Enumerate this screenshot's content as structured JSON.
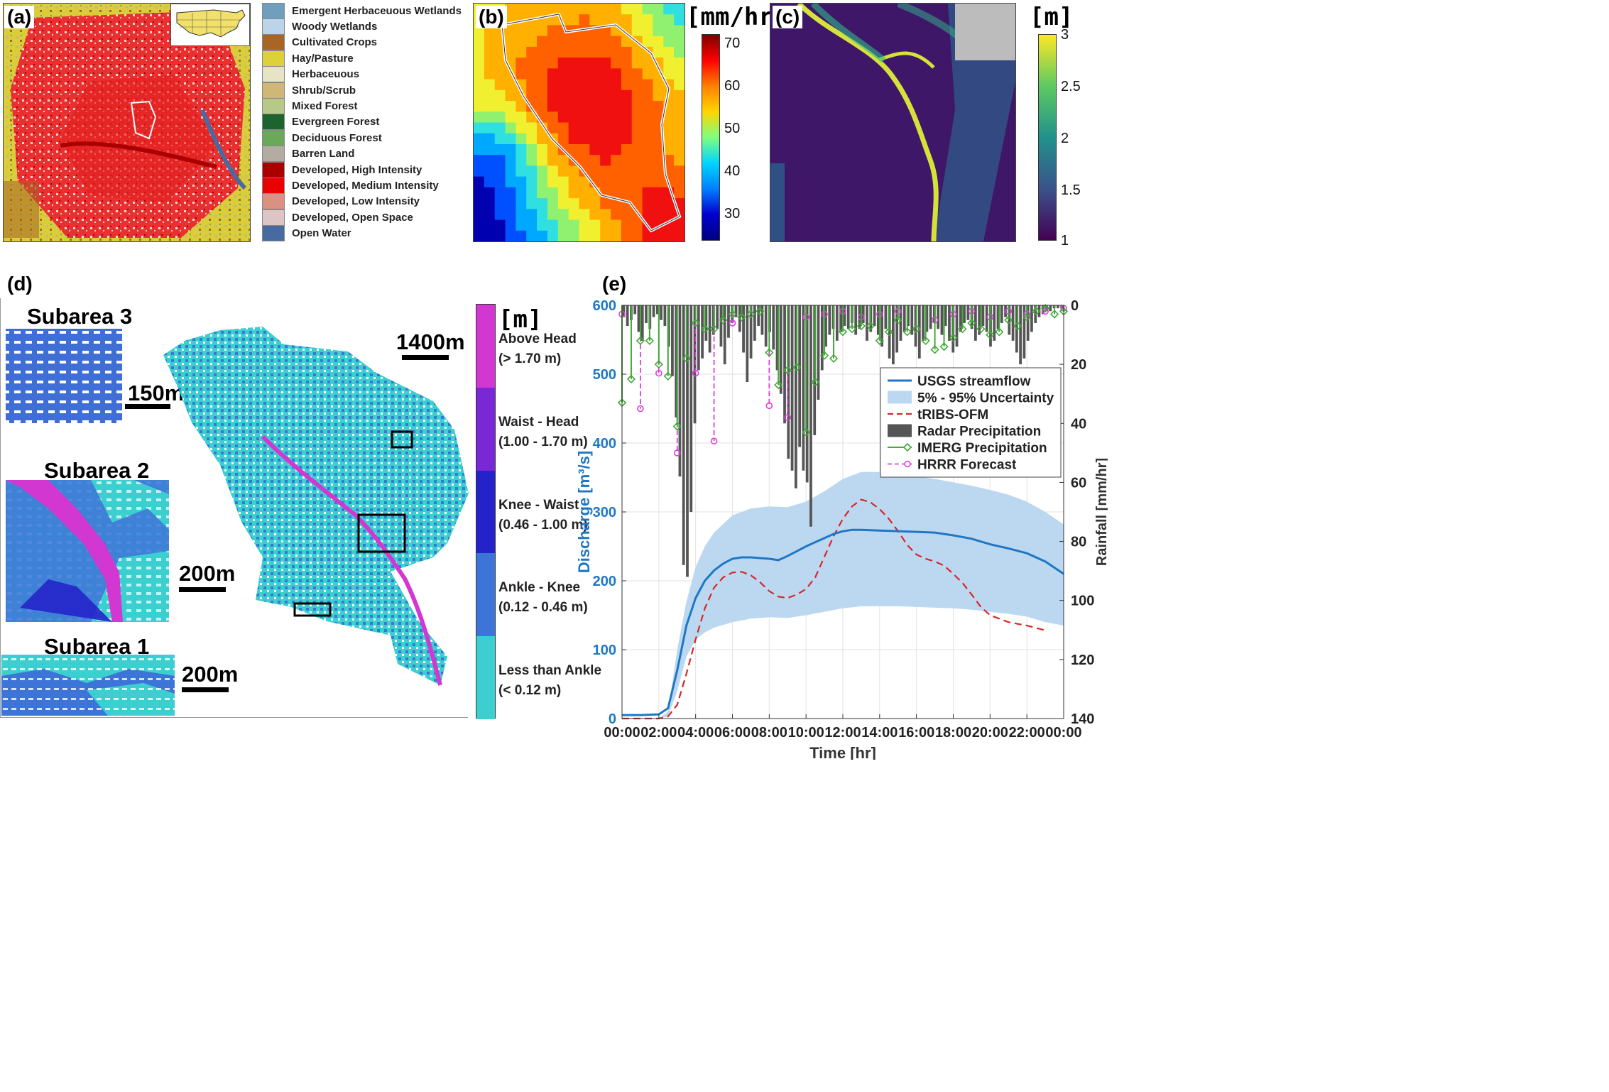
{
  "panel_letters": {
    "a": "(a)",
    "b": "(b)",
    "c": "(c)",
    "d": "(d)",
    "e": "(e)"
  },
  "landcover_legend": [
    {
      "label": "Emergent Herbaceuous Wetlands",
      "color": "#6f9fbd"
    },
    {
      "label": "Woody Wetlands",
      "color": "#bcd4e8"
    },
    {
      "label": "Cultivated Crops",
      "color": "#a86523"
    },
    {
      "label": "Hay/Pasture",
      "color": "#dcd13a"
    },
    {
      "label": "Herbaceuous",
      "color": "#e6e4c4"
    },
    {
      "label": "Shrub/Scrub",
      "color": "#cfb877"
    },
    {
      "label": "Mixed Forest",
      "color": "#b6c98b"
    },
    {
      "label": "Evergreen Forest",
      "color": "#1c6330"
    },
    {
      "label": "Deciduous Forest",
      "color": "#6aa95a"
    },
    {
      "label": "Barren Land",
      "color": "#b3aca0"
    },
    {
      "label": "Developed, High Intensity",
      "color": "#aa0000"
    },
    {
      "label": "Developed, Medium Intensity",
      "color": "#eb0000"
    },
    {
      "label": "Developed, Low Intensity",
      "color": "#d99182"
    },
    {
      "label": "Developed, Open Space",
      "color": "#dec5c5"
    },
    {
      "label": "Open Water",
      "color": "#476ba1"
    }
  ],
  "panel_b": {
    "unit": "[mm/hr]",
    "ticks": [
      "70",
      "60",
      "50",
      "40",
      "30"
    ]
  },
  "panel_c": {
    "unit": "[m]",
    "ticks": [
      "3",
      "2.5",
      "2",
      "1.5",
      "1"
    ]
  },
  "panel_d": {
    "unit": "[m]",
    "subareas": [
      "Subarea 3",
      "Subarea 2",
      "Subarea 1"
    ],
    "scales": {
      "s3": "150m",
      "s2": "200m",
      "s1": "200m",
      "main": "1400m"
    },
    "categories": [
      {
        "name": "Above Head",
        "range": "(> 1.70 m)",
        "color": "#d237d2"
      },
      {
        "name": "Waist - Head",
        "range": "(1.00 - 1.70 m)",
        "color": "#7a27d6"
      },
      {
        "name": "Knee - Waist",
        "range": "(0.46 - 1.00 m)",
        "color": "#2323c9"
      },
      {
        "name": "Ankle - Knee",
        "range": "(0.12 - 0.46 m)",
        "color": "#3d74d8"
      },
      {
        "name": "Less than Ankle",
        "range": "(< 0.12 m)",
        "color": "#3ccfd0"
      }
    ]
  },
  "chart_data": {
    "type": "line",
    "xlabel": "Time [hr]",
    "ylabel_left": "Discharge [m³/s]",
    "ylabel_right": "Rainfall [mm/hr]",
    "xlim": [
      0,
      24
    ],
    "ylim_left": [
      0,
      600
    ],
    "ylim_right": [
      140,
      0
    ],
    "x_ticks": [
      "00:00",
      "02:00",
      "04:00",
      "06:00",
      "08:00",
      "10:00",
      "12:00",
      "14:00",
      "16:00",
      "18:00",
      "20:00",
      "22:00",
      "00:00"
    ],
    "y_ticks_left": [
      "0",
      "100",
      "200",
      "300",
      "400",
      "500",
      "600"
    ],
    "y_ticks_right": [
      "0",
      "20",
      "40",
      "60",
      "80",
      "100",
      "120",
      "140"
    ],
    "grid": true,
    "legend_position": "top-right",
    "legend": [
      "USGS streamflow",
      "5% - 95% Uncertainty",
      "tRIBS-OFM",
      "Radar Precipitation",
      "IMERG Precipitation",
      "HRRR Forecast"
    ],
    "colors": {
      "usgs": "#1f77c4",
      "band": "#bcd8f1",
      "tribs": "#d62728",
      "radar": "#555555",
      "imerg": "#44a83a",
      "hrrr": "#e040e0"
    },
    "series": [
      {
        "name": "USGS streamflow",
        "x": [
          0,
          1,
          2,
          2.5,
          3,
          3.5,
          4,
          4.5,
          5,
          5.5,
          6,
          6.5,
          7,
          7.5,
          8,
          8.5,
          9,
          9.5,
          10,
          10.5,
          11,
          11.5,
          12,
          12.5,
          13,
          14,
          15,
          16,
          17,
          18,
          19,
          20,
          21,
          22,
          23,
          24
        ],
        "y": [
          5,
          5,
          6,
          15,
          70,
          135,
          175,
          200,
          215,
          225,
          232,
          234,
          234,
          233,
          232,
          230,
          236,
          243,
          250,
          256,
          262,
          268,
          272,
          274,
          274,
          273,
          272,
          271,
          270,
          266,
          261,
          253,
          247,
          240,
          228,
          210
        ]
      },
      {
        "name": "tRIBS-OFM",
        "x": [
          0,
          2,
          2.5,
          3,
          3.5,
          4,
          4.5,
          5,
          5.5,
          6,
          6.5,
          7,
          7.5,
          8,
          8.5,
          9,
          9.5,
          10,
          10.5,
          11,
          11.5,
          12,
          12.5,
          13,
          13.5,
          14,
          14.5,
          15,
          15.5,
          16,
          16.5,
          17,
          17.5,
          18,
          18.5,
          19,
          19.5,
          20,
          21,
          22,
          23
        ],
        "y": [
          0,
          0,
          3,
          20,
          65,
          115,
          160,
          190,
          205,
          212,
          213,
          208,
          198,
          185,
          177,
          175,
          180,
          188,
          205,
          235,
          265,
          290,
          308,
          318,
          314,
          304,
          290,
          272,
          252,
          238,
          232,
          228,
          222,
          210,
          197,
          180,
          162,
          150,
          140,
          135,
          128
        ]
      },
      {
        "name": "5% - 95% Uncertainty",
        "x": [
          0,
          2,
          2.5,
          3,
          3.5,
          4,
          4.5,
          5,
          6,
          7,
          8,
          9,
          10,
          11,
          12,
          13,
          14,
          15,
          16,
          17,
          18,
          19,
          20,
          21,
          22,
          23,
          24
        ],
        "lower": [
          0,
          0,
          3,
          40,
          90,
          115,
          125,
          132,
          140,
          145,
          147,
          146,
          150,
          155,
          160,
          163,
          163,
          163,
          162,
          161,
          160,
          158,
          155,
          152,
          148,
          140,
          135
        ],
        "upper": [
          0,
          0,
          10,
          100,
          170,
          220,
          250,
          270,
          295,
          305,
          308,
          307,
          315,
          330,
          348,
          358,
          358,
          356,
          352,
          348,
          343,
          338,
          332,
          325,
          315,
          300,
          282
        ]
      }
    ],
    "radar_precip_mm_hr": [
      4,
      7,
      5,
      3,
      9,
      12,
      6,
      8,
      4,
      3,
      5,
      7,
      14,
      24,
      38,
      58,
      88,
      92,
      70,
      40,
      22,
      18,
      12,
      16,
      10,
      8,
      14,
      20,
      11,
      6,
      4,
      9,
      16,
      26,
      18,
      12,
      7,
      10,
      14,
      9,
      15,
      22,
      30,
      40,
      52,
      56,
      62,
      48,
      56,
      60,
      75,
      44,
      32,
      22,
      14,
      10,
      8,
      12,
      9,
      7,
      8,
      6,
      10,
      8,
      6,
      12,
      9,
      7,
      10,
      14,
      8,
      18,
      20,
      16,
      12,
      9,
      7,
      10,
      14,
      18,
      12,
      9,
      8,
      6,
      8,
      10,
      7,
      12,
      16,
      14,
      9,
      6,
      5,
      8,
      12,
      10,
      7,
      9,
      14,
      12,
      8,
      6,
      4,
      10,
      12,
      16,
      20,
      18,
      12,
      9,
      6,
      4,
      3,
      2,
      2,
      1,
      1,
      1
    ],
    "imerg_precip_mm_hr": [
      0,
      0.5,
      1,
      1.5,
      2,
      2.5,
      3,
      3.5,
      4,
      4.5,
      5,
      5.5,
      6,
      6.5,
      7,
      7.5,
      8,
      8.5,
      9,
      9.5,
      10,
      10.5,
      11,
      11.5,
      12,
      12.5,
      13,
      13.5,
      14,
      14.5,
      15,
      15.5,
      16,
      16.5,
      17,
      17.5,
      18,
      18.5,
      19,
      19.5,
      20,
      20.5,
      21,
      21.5,
      22,
      22.5,
      23,
      23.5,
      24
    ],
    "imerg_values": [
      33,
      25,
      12,
      12,
      20,
      24,
      41,
      18,
      6,
      8,
      8,
      5,
      3,
      4,
      3,
      2,
      16,
      27,
      22,
      21,
      43,
      26,
      17,
      18,
      9,
      8,
      7,
      7,
      12,
      9,
      5,
      9,
      8,
      12,
      15,
      14,
      11,
      8,
      6,
      8,
      10,
      9,
      5,
      7,
      4,
      2,
      1,
      3,
      2
    ],
    "hrrr_x": [
      0,
      1,
      2,
      3,
      4,
      5,
      6,
      7,
      8,
      9,
      10,
      11,
      12,
      13,
      14,
      15,
      16,
      17,
      18,
      19,
      20,
      21,
      22,
      23,
      24
    ],
    "hrrr_values": [
      3,
      35,
      23,
      50,
      23,
      46,
      6,
      3,
      34,
      38,
      4,
      3,
      2,
      4,
      3,
      2,
      8,
      5,
      3,
      2,
      4,
      2,
      3,
      2,
      1
    ]
  }
}
